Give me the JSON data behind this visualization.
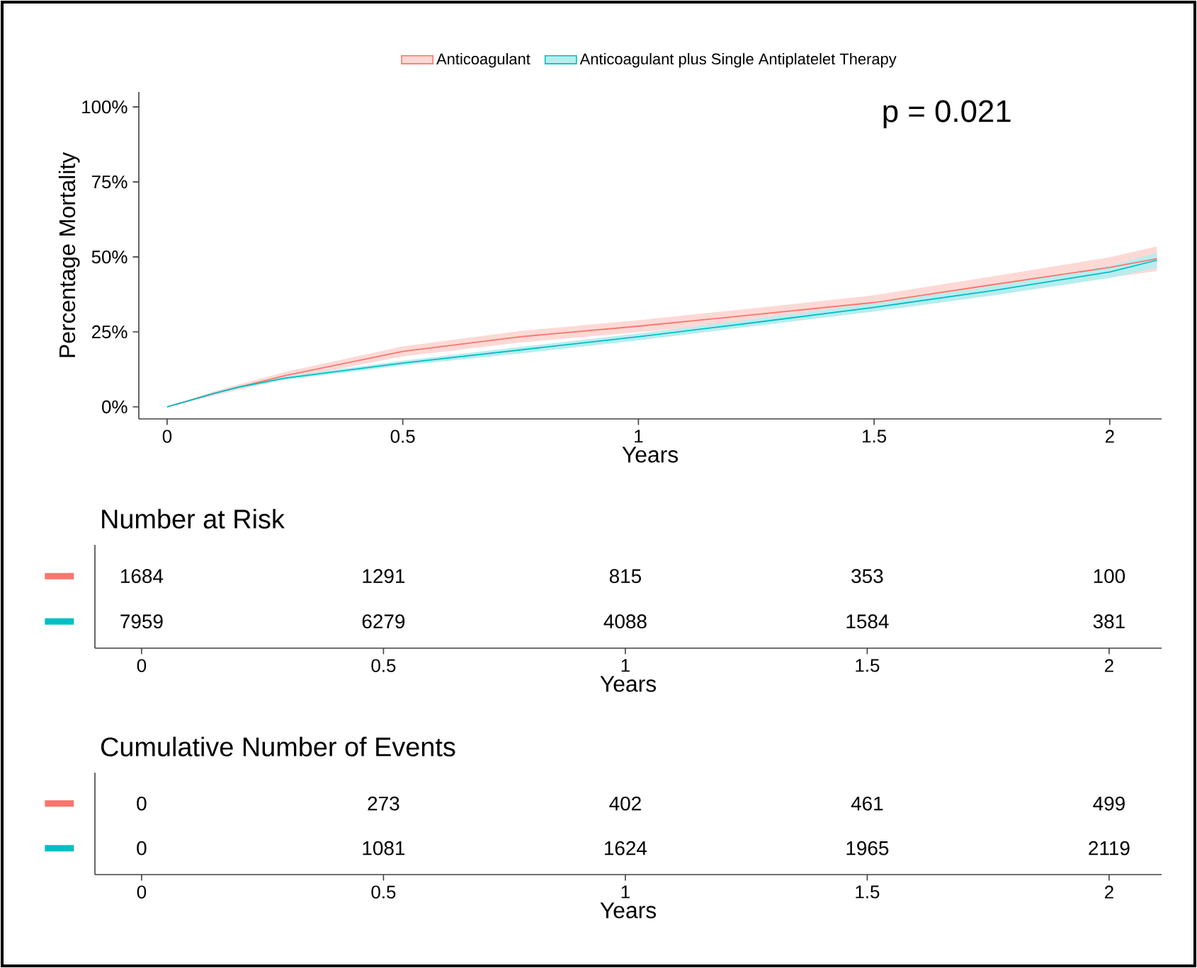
{
  "chart_data": [
    {
      "type": "line",
      "xlabel": "Years",
      "ylabel": "Percentage Mortality",
      "legend": "top",
      "xlim": [
        -0.06,
        2.11
      ],
      "xticks": [
        0,
        0.5,
        1,
        1.5,
        2
      ],
      "ylim": [
        -4,
        105
      ],
      "yticks": [
        {
          "value": 0,
          "label": "0%"
        },
        {
          "value": 25,
          "label": "25%"
        },
        {
          "value": 50,
          "label": "50%"
        },
        {
          "value": 75,
          "label": "75%"
        },
        {
          "value": 100,
          "label": "100%"
        }
      ],
      "annotations": [
        "p = 0.021"
      ],
      "series": [
        {
          "name": "Anticoagulant",
          "color": "#f8766d",
          "x": [
            0,
            0.1,
            0.15,
            0.25,
            0.5,
            0.75,
            1,
            1.25,
            1.5,
            1.75,
            2,
            2.1
          ],
          "values": [
            0,
            4.5,
            6.5,
            10.4,
            18.5,
            23.4,
            26.9,
            30.8,
            34.8,
            40.7,
            46.5,
            49.4
          ],
          "lower": [
            0,
            3.8,
            5.6,
            9.2,
            16.8,
            21.5,
            24.9,
            28.6,
            32.4,
            37.9,
            43.1,
            45.3
          ],
          "upper": [
            0,
            5.2,
            7.4,
            11.6,
            20.2,
            25.3,
            28.9,
            33.0,
            37.2,
            43.5,
            49.9,
            53.5
          ]
        },
        {
          "name": "Anticoagulant plus Single Antiplatelet Therapy",
          "color": "#00bfc4",
          "x": [
            0,
            0.1,
            0.15,
            0.25,
            0.5,
            0.75,
            1,
            1.25,
            1.5,
            1.75,
            2,
            2.1
          ],
          "values": [
            0,
            4.5,
            6.5,
            9.6,
            14.6,
            19.0,
            23.4,
            28.2,
            33.2,
            38.7,
            45.0,
            48.9
          ],
          "lower": [
            0,
            4.2,
            6.1,
            9.0,
            13.8,
            17.8,
            22.2,
            27.0,
            31.8,
            37.1,
            43.0,
            46.4
          ],
          "upper": [
            0,
            4.8,
            6.9,
            10.2,
            15.4,
            20.0,
            24.5,
            29.4,
            34.6,
            40.3,
            47.0,
            51.4
          ]
        }
      ]
    },
    {
      "type": "heatmap",
      "title": "Number at Risk",
      "xlabel": "Years",
      "data_labels": true,
      "categories": [
        "0",
        "0.5",
        "1",
        "1.5",
        "2"
      ],
      "y_categories": [
        null,
        null
      ],
      "colors": [
        "#f8766d",
        "#00bfc4"
      ],
      "cells": [
        [
          1684,
          1291,
          815,
          353,
          100
        ],
        [
          7959,
          6279,
          4088,
          1584,
          381
        ]
      ]
    },
    {
      "type": "heatmap",
      "title": "Cumulative Number of Events",
      "xlabel": "Years",
      "data_labels": true,
      "categories": [
        "0",
        "0.5",
        "1",
        "1.5",
        "2"
      ],
      "y_categories": [
        null,
        null
      ],
      "colors": [
        "#f8766d",
        "#00bfc4"
      ],
      "cells": [
        [
          0,
          273,
          402,
          461,
          499
        ],
        [
          0,
          1081,
          1624,
          1965,
          2119
        ]
      ]
    }
  ]
}
